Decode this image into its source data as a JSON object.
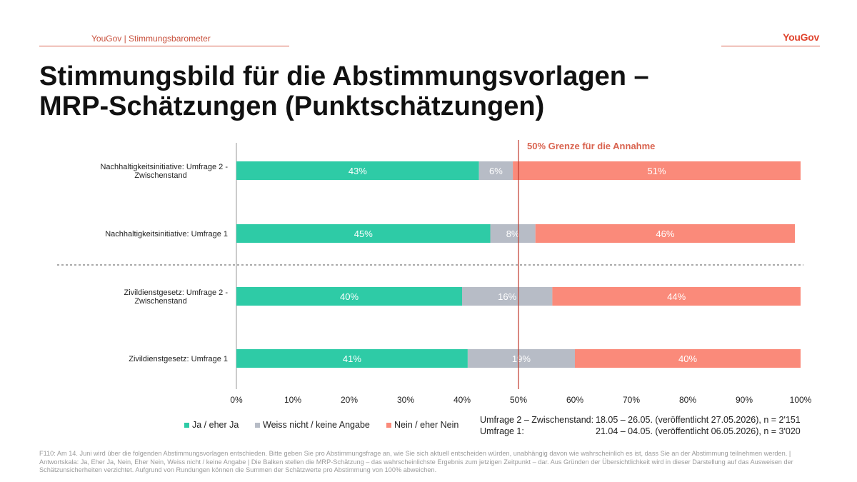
{
  "header": {
    "label": "YouGov | Stimmungsbarometer",
    "logo": "YouGov"
  },
  "title": {
    "line1": "Stimmungsbild für die Abstimmungsvorlagen –",
    "line2": "MRP-Schätzungen (Punktschätzungen)"
  },
  "chart_data": {
    "type": "bar",
    "orientation": "horizontal",
    "stacked": true,
    "categories": [
      [
        "Nachhaltigkeitsinitiative: Umfrage 2 -",
        "Zwischenstand"
      ],
      [
        "Nachhaltigkeitsinitiative: Umfrage 1"
      ],
      [
        "Zivildienstgesetz: Umfrage 2 -",
        "Zwischenstand"
      ],
      [
        "Zivildienstgesetz: Umfrage 1"
      ]
    ],
    "series": [
      {
        "name": "Ja / eher Ja",
        "color": "#2ecba6",
        "values": [
          43,
          45,
          40,
          41
        ],
        "labels": [
          "43%",
          "45%",
          "40%",
          "41%"
        ]
      },
      {
        "name": "Weiss nicht / keine Angabe",
        "color": "#b7bcc6",
        "values": [
          6,
          8,
          16,
          19
        ],
        "labels": [
          "6%",
          "8%",
          "16%",
          "19%"
        ]
      },
      {
        "name": "Nein / eher Nein",
        "color": "#fa8a7a",
        "values": [
          51,
          46,
          44,
          40
        ],
        "labels": [
          "51%",
          "46%",
          "44%",
          "40%"
        ]
      }
    ],
    "xlim": [
      0,
      100
    ],
    "x_ticks": [
      "0%",
      "10%",
      "20%",
      "30%",
      "40%",
      "50%",
      "60%",
      "70%",
      "80%",
      "90%",
      "100%"
    ],
    "reference_line": {
      "value": 50,
      "label": "50% Grenze für die Annahme",
      "color": "#c0392b"
    },
    "group_separator": "dashed line between Nachhaltigkeitsinitiative and Zivildienstgesetz",
    "legend_position": "bottom-left"
  },
  "legend": [
    {
      "label": "Ja / eher Ja",
      "color": "#2ecba6"
    },
    {
      "label": "Weiss nicht / keine Angabe",
      "color": "#b7bcc6"
    },
    {
      "label": "Nein / eher Nein",
      "color": "#fa8a7a"
    }
  ],
  "survey_info": [
    {
      "name": "Umfrage 2 – Zwischenstand:",
      "details": "18.05 – 26.05. (veröffentlicht 27.05.2026), n = 2'151"
    },
    {
      "name": "Umfrage 1:",
      "details": "21.04 – 04.05. (veröffentlicht 06.05.2026), n = 3'020"
    }
  ],
  "footnote": "F110: Am 14. Juni wird über die folgenden Abstimmungsvorlagen entschieden. Bitte geben Sie pro Abstimmungsfrage an, wie Sie sich aktuell entscheiden würden, unabhängig davon wie wahrscheinlich es ist, dass Sie an der Abstimmung teilnehmen werden. | Antwortskala: Ja, Eher Ja, Nein, Eher Nein, Weiss nicht / keine Angabe | Die Balken stellen die MRP-Schätzung – das wahrscheinlichste Ergebnis zum jetzigen Zeitpunkt – dar. Aus Gründen der Übersichtlichkeit wird in dieser Darstellung auf das Ausweisen der Schätzunsicherheiten verzichtet. Aufgrund von Rundungen können die Summen der Schätzwerte pro Abstimmung von 100% abweichen."
}
